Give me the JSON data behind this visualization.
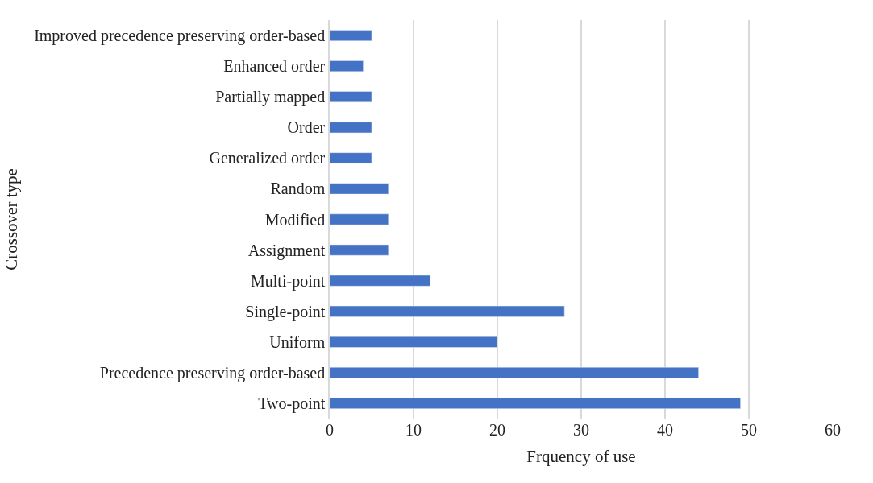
{
  "chart_data": {
    "type": "bar",
    "orientation": "horizontal",
    "xlabel": "Frquency of use",
    "ylabel": "Crossover type",
    "categories": [
      "Improved precedence preserving order-based",
      "Enhanced order",
      "Partially mapped",
      "Order",
      "Generalized order",
      "Random",
      "Modified",
      "Assignment",
      "Multi-point",
      "Single-point",
      "Uniform",
      "Precedence preserving order-based",
      "Two-point"
    ],
    "values": [
      5,
      4,
      5,
      5,
      5,
      7,
      7,
      7,
      12,
      28,
      20,
      44,
      49
    ],
    "color": "#4472c4",
    "xlim": [
      0,
      60
    ],
    "xticks": [
      0,
      10,
      20,
      30,
      40,
      50,
      60
    ],
    "grid": "x",
    "legend": false
  }
}
